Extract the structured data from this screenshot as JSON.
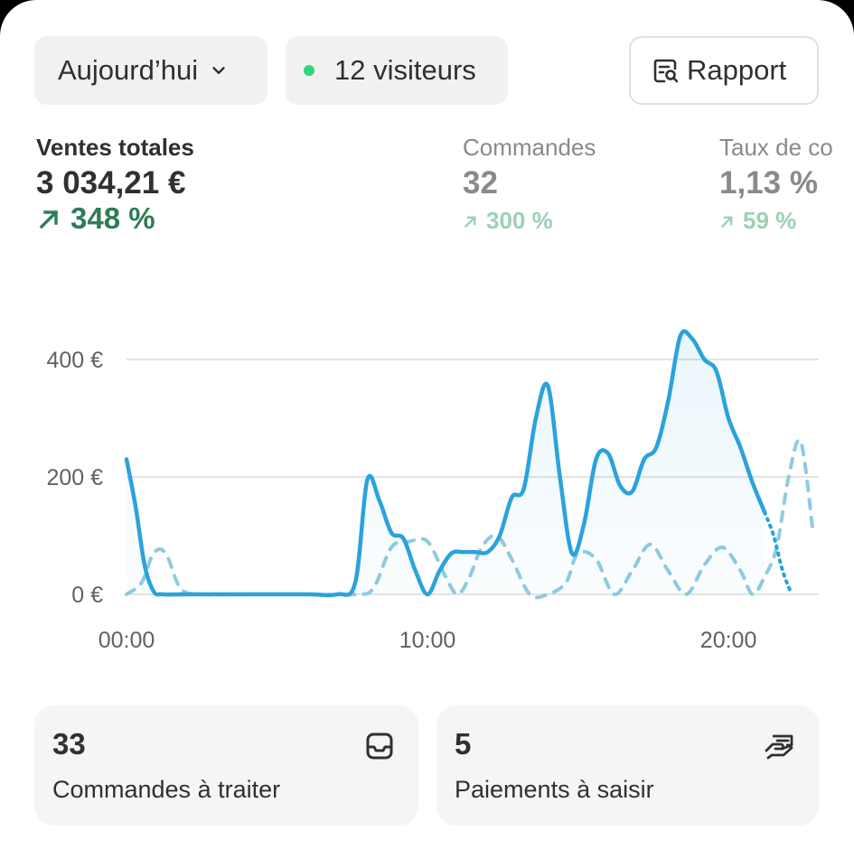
{
  "toolbar": {
    "date_label": "Aujourd’hui",
    "visitors_label": "12 visiteurs",
    "visitors_dot_color": "#2ed57a",
    "report_label": "Rapport"
  },
  "metrics": [
    {
      "label": "Ventes totales",
      "value": "3 034,21 €",
      "change": "348 %"
    },
    {
      "label": "Commandes",
      "value": "32",
      "change": "300 %"
    },
    {
      "label": "Taux de co",
      "value": "1,13 %",
      "change": "59 %"
    }
  ],
  "colors": {
    "accent": "#2aa3dc",
    "comparison": "#8fcbe0",
    "positive": "#2e7d57"
  },
  "chart_data": {
    "type": "line",
    "y_ticks": [
      "400 €",
      "200 €",
      "0 €"
    ],
    "x_ticks": [
      "00:00",
      "10:00",
      "20:00"
    ],
    "ylim": [
      0,
      400
    ],
    "xlim": [
      0,
      23
    ],
    "grid": true,
    "series": [
      {
        "x": [
          0,
          0.3,
          0.6,
          0.9,
          1.2,
          2,
          4,
          6,
          7,
          7.6,
          8,
          8.4,
          8.8,
          9.2,
          9.6,
          10,
          10.4,
          10.8,
          11.2,
          11.6,
          12,
          12.4,
          12.8,
          13.2,
          13.6,
          14,
          14.4,
          14.8,
          15.2,
          15.6,
          16,
          16.4,
          16.8,
          17.2,
          17.6,
          18,
          18.4,
          18.8,
          19.2,
          19.6,
          20,
          20.4,
          20.8,
          21.2
        ],
        "y": [
          230,
          150,
          50,
          5,
          0,
          0,
          0,
          0,
          0,
          20,
          195,
          160,
          105,
          95,
          40,
          0,
          40,
          70,
          72,
          72,
          72,
          100,
          165,
          180,
          300,
          355,
          200,
          70,
          120,
          230,
          240,
          185,
          175,
          230,
          250,
          330,
          440,
          435,
          400,
          380,
          300,
          250,
          190,
          140
        ]
      },
      {
        "x": [
          21.2,
          21.5,
          21.8,
          22.1
        ],
        "y": [
          140,
          100,
          40,
          0
        ]
      },
      {
        "x": [
          0,
          0.5,
          0.9,
          1.3,
          1.8,
          2.5,
          4,
          6,
          7.6,
          8.2,
          8.8,
          9.4,
          10,
          10.6,
          11,
          11.4,
          11.8,
          12.3,
          12.8,
          13.4,
          14,
          14.6,
          15,
          15.6,
          16.2,
          16.8,
          17.4,
          18,
          18.6,
          19.2,
          19.8,
          20.4,
          20.8,
          21.2,
          21.6,
          22,
          22.4,
          22.8
        ],
        "y": [
          0,
          20,
          70,
          70,
          10,
          0,
          0,
          0,
          0,
          10,
          80,
          90,
          90,
          30,
          0,
          30,
          80,
          100,
          60,
          0,
          0,
          20,
          70,
          60,
          0,
          40,
          85,
          40,
          0,
          50,
          80,
          40,
          0,
          30,
          80,
          200,
          260,
          110
        ]
      }
    ]
  },
  "tasks": [
    {
      "count": "33",
      "label": "Commandes à traiter",
      "icon": "inbox-icon"
    },
    {
      "count": "5",
      "label": "Paiements à saisir",
      "icon": "hand-cash-icon"
    }
  ]
}
